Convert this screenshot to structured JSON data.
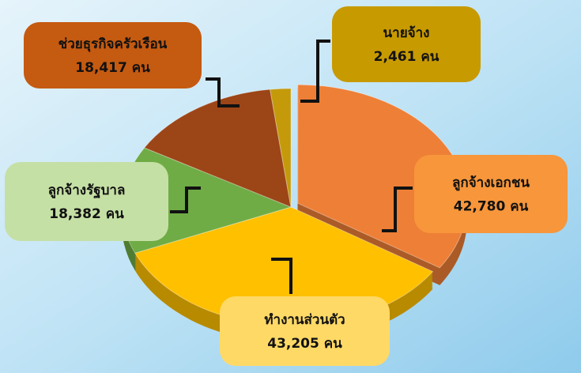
{
  "chart_data": {
    "type": "pie",
    "categories": [
      "ลูกจ้างเอกชน",
      "ทำงานส่วนตัว",
      "ลูกจ้างรัฐบาล",
      "ช่วยธุรกิจครัวเรือน",
      "นายจ้าง"
    ],
    "values": [
      42780,
      43205,
      18382,
      18417,
      2461
    ],
    "value_labels": [
      "42,780 คน",
      "43,205 คน",
      "18,382 คน",
      "18,417 คน",
      "2,461 คน"
    ],
    "colors": [
      "#ee7f36",
      "#ffc000",
      "#6fac45",
      "#9c4517",
      "#c49a0b"
    ]
  }
}
